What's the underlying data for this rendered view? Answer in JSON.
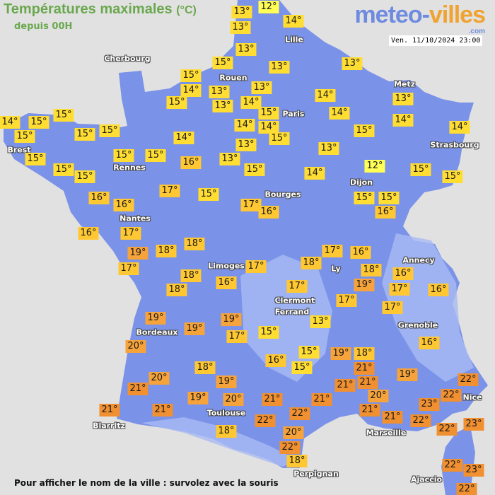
{
  "header": {
    "title": "Températures maximales",
    "unit": "(°C)",
    "subtitle": "depuis 00H"
  },
  "logo": {
    "name": "meteo-",
    "name2": "villes",
    "tld": ".com"
  },
  "timestamp": "Ven. 11/10/2024 23:00",
  "footer": "Pour afficher le nom de la ville : survolez avec la souris",
  "colors": {
    "land": "#7a92e8",
    "relief": "#a9baf2",
    "sea": "#e2e1e1",
    "temp_cool": "#ffdd33",
    "temp_mild": "#ffc833",
    "temp_warm": "#f5a33a",
    "temp_hot": "#f09030",
    "temp_coldest": "#ffff55"
  },
  "cities": [
    "Cherbourg",
    "Lille",
    "Rouen",
    "Paris",
    "Metz",
    "Strasbourg",
    "Brest",
    "Rennes",
    "Dijon",
    "Bourges",
    "Nantes",
    "Limoges",
    "Annecy",
    "Ly",
    "Clermont",
    "Ferrand",
    "Grenoble",
    "Bordeaux",
    "Toulouse",
    "Biarritz",
    "Marseille",
    "Perpignan",
    "Nice",
    "Ajaccio"
  ],
  "temperatures": [
    13,
    12,
    13,
    14,
    13,
    13,
    13,
    15,
    15,
    14,
    13,
    13,
    15,
    13,
    14,
    14,
    13,
    15,
    14,
    14,
    14,
    14,
    15,
    15,
    14,
    13,
    13,
    14,
    16,
    13,
    15,
    15,
    15,
    14,
    15,
    15,
    15,
    15,
    15,
    15,
    15,
    12,
    15,
    15,
    14,
    15,
    17,
    15,
    16,
    16,
    17,
    16,
    15,
    15,
    16,
    16,
    17,
    18,
    18,
    19,
    17,
    17,
    16,
    18,
    19,
    16,
    17,
    16,
    17,
    18,
    18,
    18,
    16,
    17,
    17,
    17,
    13,
    19,
    19,
    19,
    17,
    15,
    16,
    15,
    15,
    19,
    18,
    21,
    16,
    19,
    20,
    18,
    19,
    20,
    21,
    21,
    21,
    20,
    21,
    21,
    19,
    20,
    21,
    21,
    22,
    22,
    23,
    22,
    22,
    22,
    22,
    23,
    21,
    21,
    18,
    20,
    22,
    18,
    22,
    23,
    22
  ]
}
